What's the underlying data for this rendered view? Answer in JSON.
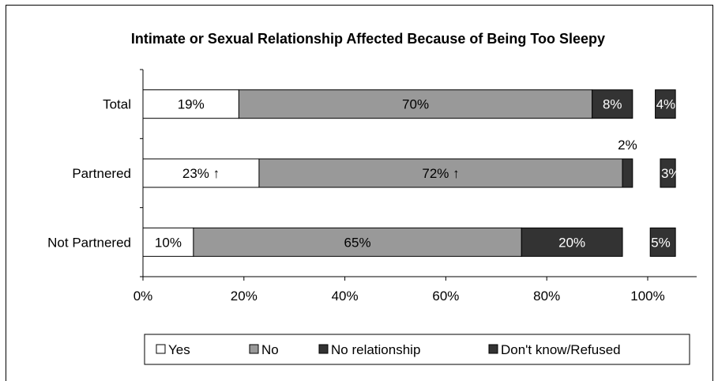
{
  "chart_data": {
    "type": "bar",
    "title": "Intimate or Sexual Relationship Affected Because of Being Too Sleepy",
    "stacked": true,
    "orientation": "horizontal",
    "categories": [
      "Total",
      "Partnered",
      "Not Partnered"
    ],
    "series": [
      {
        "name": "Yes",
        "color": "#ffffff",
        "values": [
          19,
          23,
          10
        ],
        "labels": [
          "19%",
          "23% ↑",
          "10%"
        ]
      },
      {
        "name": "No",
        "color": "#999999",
        "values": [
          70,
          72,
          65
        ],
        "labels": [
          "70%",
          "72% ↑",
          "65%"
        ]
      },
      {
        "name": "No relationship",
        "color": "#333333",
        "values": [
          8,
          2,
          20
        ],
        "labels": [
          "8%",
          "2%",
          "20%"
        ]
      },
      {
        "name": "Don't know/Refused",
        "color": "#333333",
        "values": [
          4,
          3,
          5
        ],
        "labels": [
          "4%",
          "3%",
          "5%"
        ]
      }
    ],
    "xlim": [
      0,
      100
    ],
    "xticks": [
      "0%",
      "20%",
      "40%",
      "60%",
      "80%",
      "100%"
    ],
    "legend_position": "bottom",
    "grid": false
  }
}
